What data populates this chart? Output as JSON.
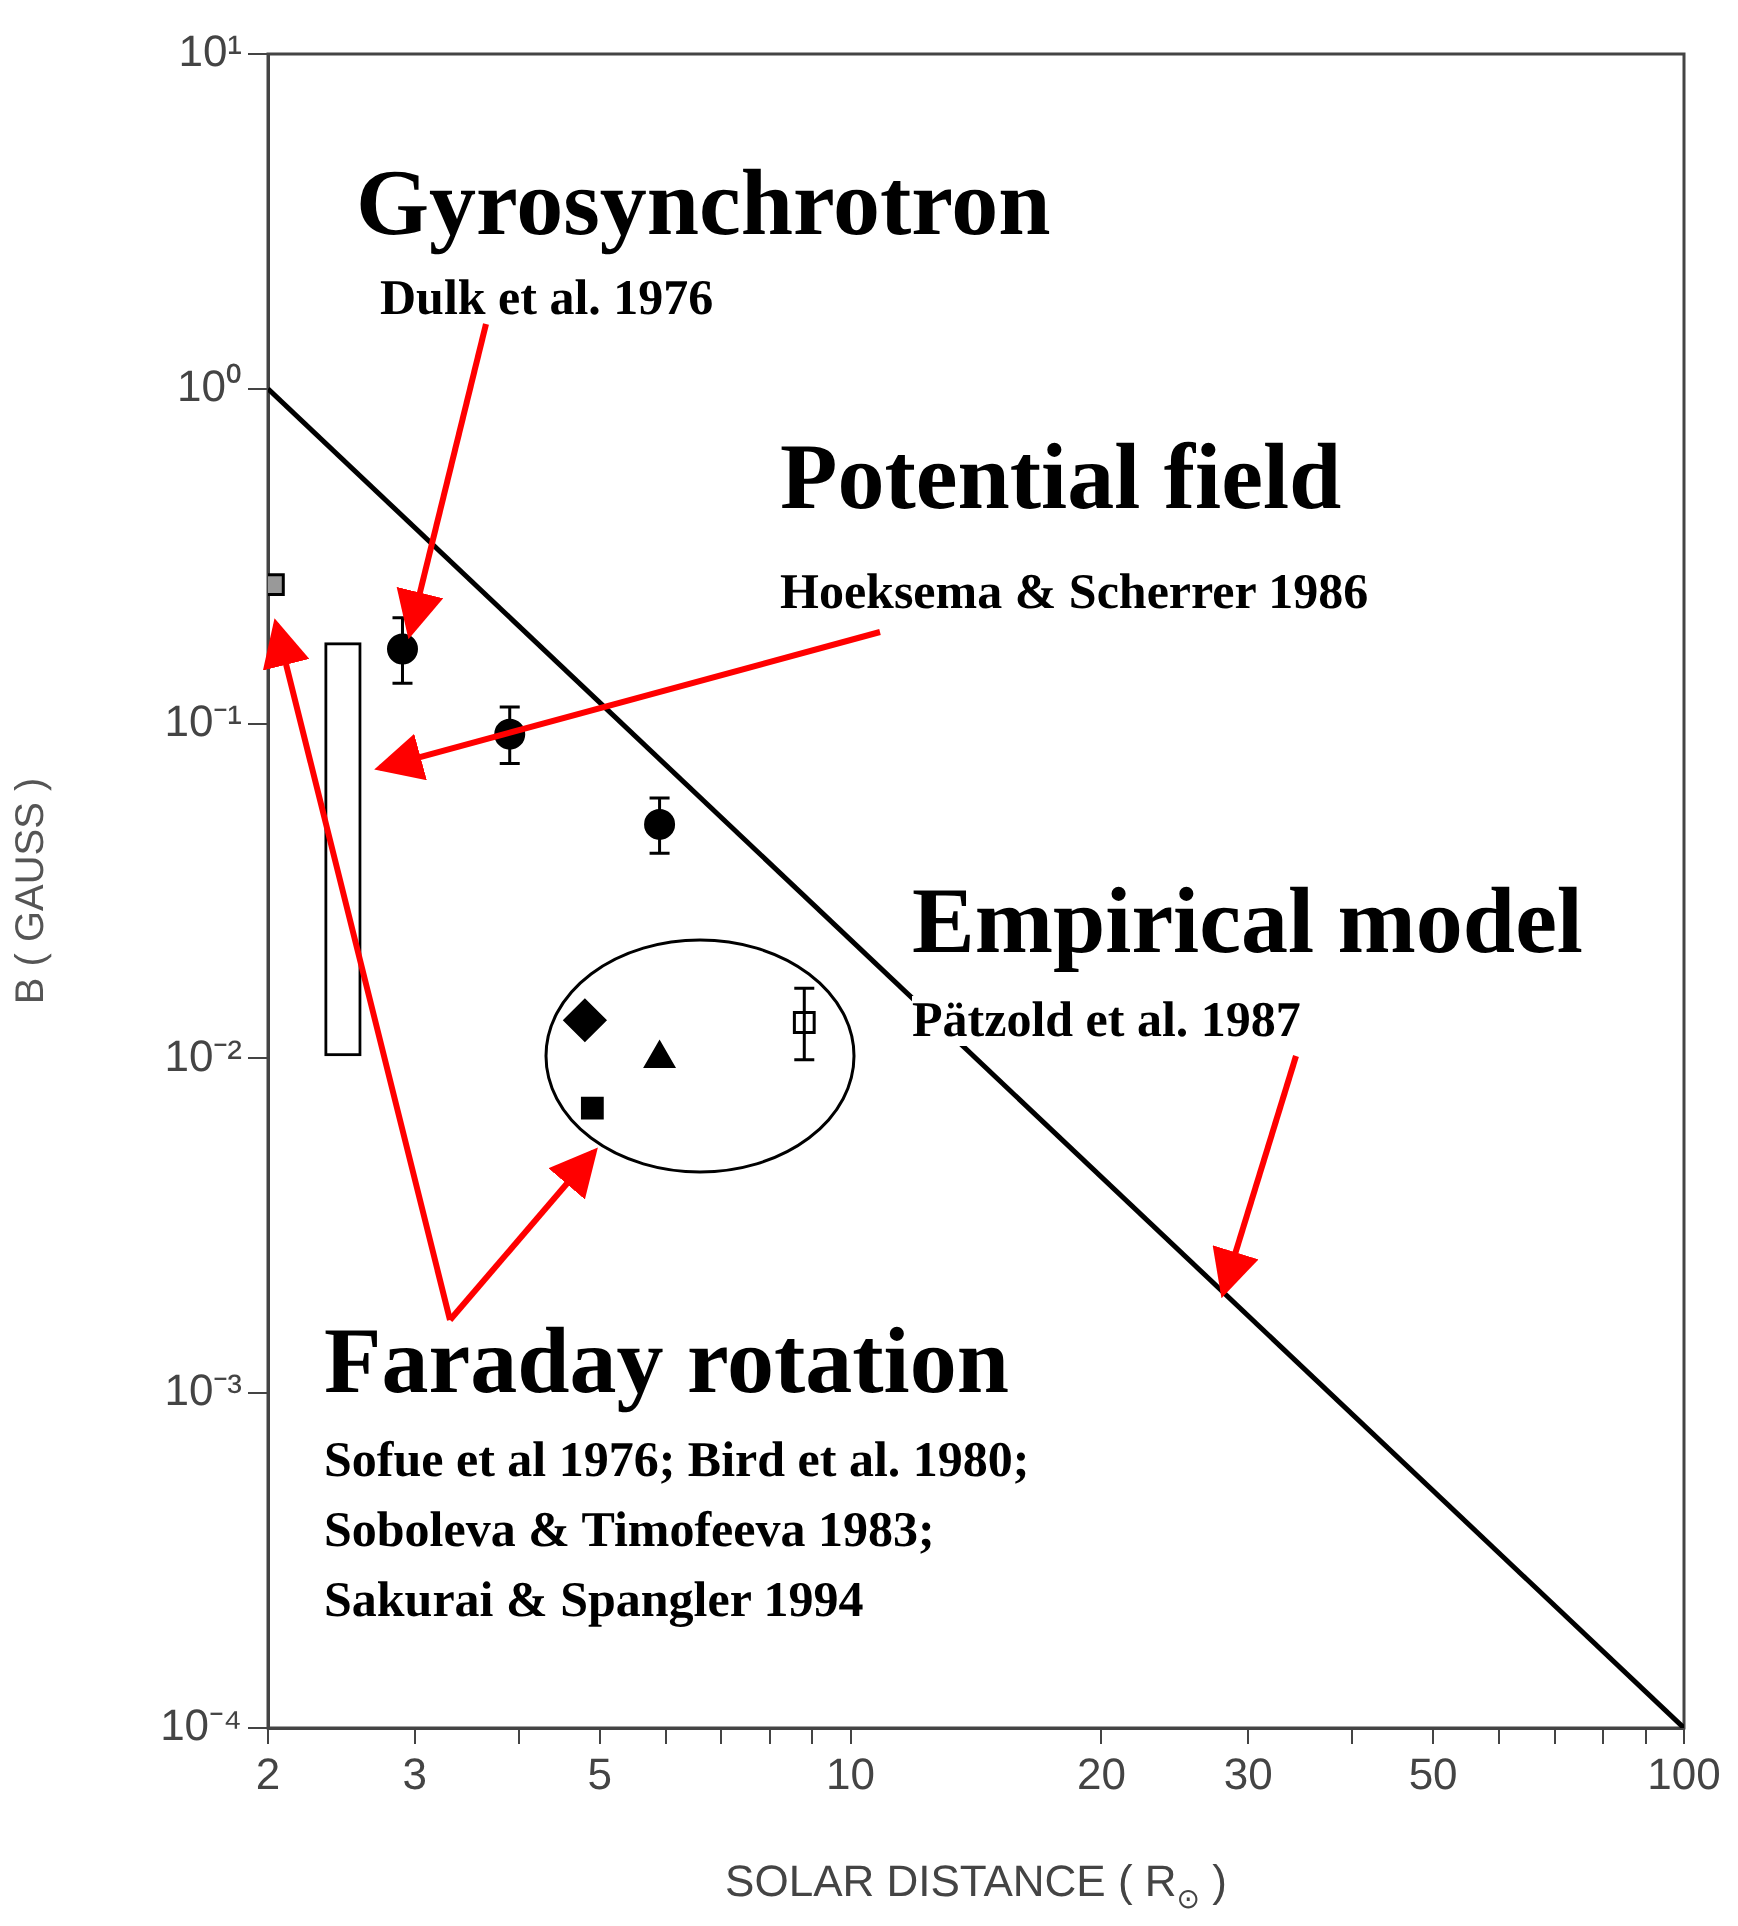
{
  "chart_data": {
    "type": "scatter",
    "xlabel": "SOLAR DISTANCE ( R$_{⊙}$ )",
    "ylabel": "B ( GAUSS )",
    "log": "xy",
    "xlim": [
      2,
      100
    ],
    "ylim": [
      0.0001,
      10
    ],
    "xticks": [
      2,
      3,
      {
        "value": 4,
        "label": null
      },
      5,
      {
        "value": 6,
        "label": null
      },
      {
        "value": 7,
        "label": null
      },
      {
        "value": 8,
        "label": null
      },
      {
        "value": 9,
        "label": null
      },
      10,
      20,
      30,
      {
        "value": 40,
        "label": null
      },
      50,
      {
        "value": 60,
        "label": null
      },
      {
        "value": 70,
        "label": null
      },
      {
        "value": 80,
        "label": null
      },
      {
        "value": 90,
        "label": null
      },
      100
    ],
    "yticks": [
      {
        "value": 0.0001,
        "label": "10⁻⁴"
      },
      {
        "value": 0.001,
        "label": "10⁻³"
      },
      {
        "value": 0.01,
        "label": "10⁻²"
      },
      {
        "value": 0.1,
        "label": "10⁻¹"
      },
      {
        "value": 1,
        "label": "10⁰"
      },
      {
        "value": 10,
        "label": "10¹"
      }
    ],
    "grid": false,
    "legend": false,
    "series": [
      {
        "type": "line",
        "color": "#000000",
        "marker": "none",
        "line_style": "solid",
        "x": [
          2,
          100
        ],
        "values": [
          1,
          0.0001
        ]
      },
      {
        "type": "bar",
        "color": "#ffffff",
        "x": [
          2.46
        ],
        "base": [
          0.0102
        ],
        "values": [
          0.164
        ]
      },
      {
        "color": "#000000",
        "marker": "circle",
        "x": [
          2.9,
          3.9,
          5.9
        ],
        "values": [
          0.167,
          0.093,
          0.05
        ],
        "errors": [
          [
            0.132,
            0.207
          ],
          [
            0.076,
            0.112
          ],
          [
            0.041,
            0.06
          ]
        ]
      },
      {
        "color": "#999999",
        "marker": "square",
        "x": [
          2.03
        ],
        "values": [
          0.26
        ]
      },
      {
        "color": "#000000",
        "marker": "diamond",
        "x": [
          4.8
        ],
        "values": [
          0.013
        ]
      },
      {
        "color": "#000000",
        "marker": "triangle",
        "x": [
          5.9
        ],
        "values": [
          0.01
        ]
      },
      {
        "color": "#000000",
        "marker": "square",
        "x": [
          4.9
        ],
        "values": [
          0.0071
        ]
      },
      {
        "color": "#ffffff",
        "marker": "square",
        "x": [
          8.8
        ],
        "values": [
          0.0128
        ],
        "errors": [
          [
            0.0099,
            0.0162
          ]
        ]
      }
    ],
    "annotations": [
      {
        "text": "Gyrosynchrotron",
        "x": 2.96,
        "y": 0.186
      },
      "Dulk et al. 1976",
      "Potential field",
      "Hoeksema & Scherrer 1986",
      {
        "text": "Empirical model",
        "x": 28,
        "y": 0.002
      },
      "Pätzold et al. 1987",
      "Faraday rotation",
      "Sofue et al 1976; Bird et al. 1980;",
      "Soboleva & Timofeeva 1983;",
      "Sakurai & Spangler 1994"
    ]
  }
}
